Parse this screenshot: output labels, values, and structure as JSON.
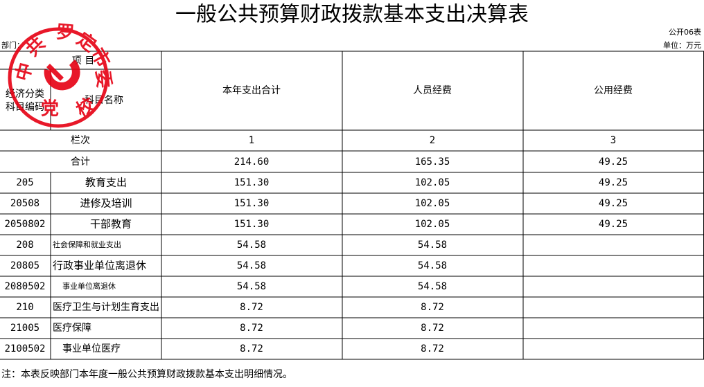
{
  "header": {
    "title": "一般公共预算财政拨款基本支出决算表",
    "form_no": "公开06表",
    "dept": "部门：",
    "unit": "单位：万元"
  },
  "seal": {
    "chars": [
      "中",
      "共",
      "罗",
      "定",
      "市",
      "委",
      "党",
      "校"
    ]
  },
  "table": {
    "head": {
      "item": "项    目",
      "code_label": [
        "经济分类",
        "科目编码"
      ],
      "name_label": "科目名称",
      "columns": [
        "本年支出合计",
        "人员经费",
        "公用经费"
      ]
    },
    "index_row": {
      "label": "栏次",
      "numbers": [
        "1",
        "2",
        "3"
      ]
    },
    "total_row": {
      "label": "合计",
      "total": "214.60",
      "personnel": "165.35",
      "public": "49.25"
    },
    "rows": [
      {
        "code": "205",
        "name": "教育支出",
        "total": "151.30",
        "personnel": "102.05",
        "public": "49.25"
      },
      {
        "code": "20508",
        "name": "进修及培训",
        "total": "151.30",
        "personnel": "102.05",
        "public": "49.25"
      },
      {
        "code": "2050802",
        "name": "干部教育",
        "total": "151.30",
        "personnel": "102.05",
        "public": "49.25"
      },
      {
        "code": "208",
        "name": "社会保障和就业支出",
        "total": "54.58",
        "personnel": "54.58"
      },
      {
        "code": "20805",
        "name": "行政事业单位离退休",
        "total": "54.58",
        "personnel": "54.58"
      },
      {
        "code": "2080502",
        "name": "事业单位离退休",
        "total": "54.58",
        "personnel": "54.58"
      },
      {
        "code": "210",
        "name": "医疗卫生与计划生育支出",
        "total": "8.72",
        "personnel": "8.72"
      },
      {
        "code": "21005",
        "name": "医疗保障",
        "total": "8.72",
        "personnel": "8.72"
      },
      {
        "code": "2100502",
        "name": "事业单位医疗",
        "total": "8.72",
        "personnel": "8.72"
      }
    ]
  },
  "note": "注：本表反映部门本年度一般公共预算财政拨款基本支出明细情况。"
}
